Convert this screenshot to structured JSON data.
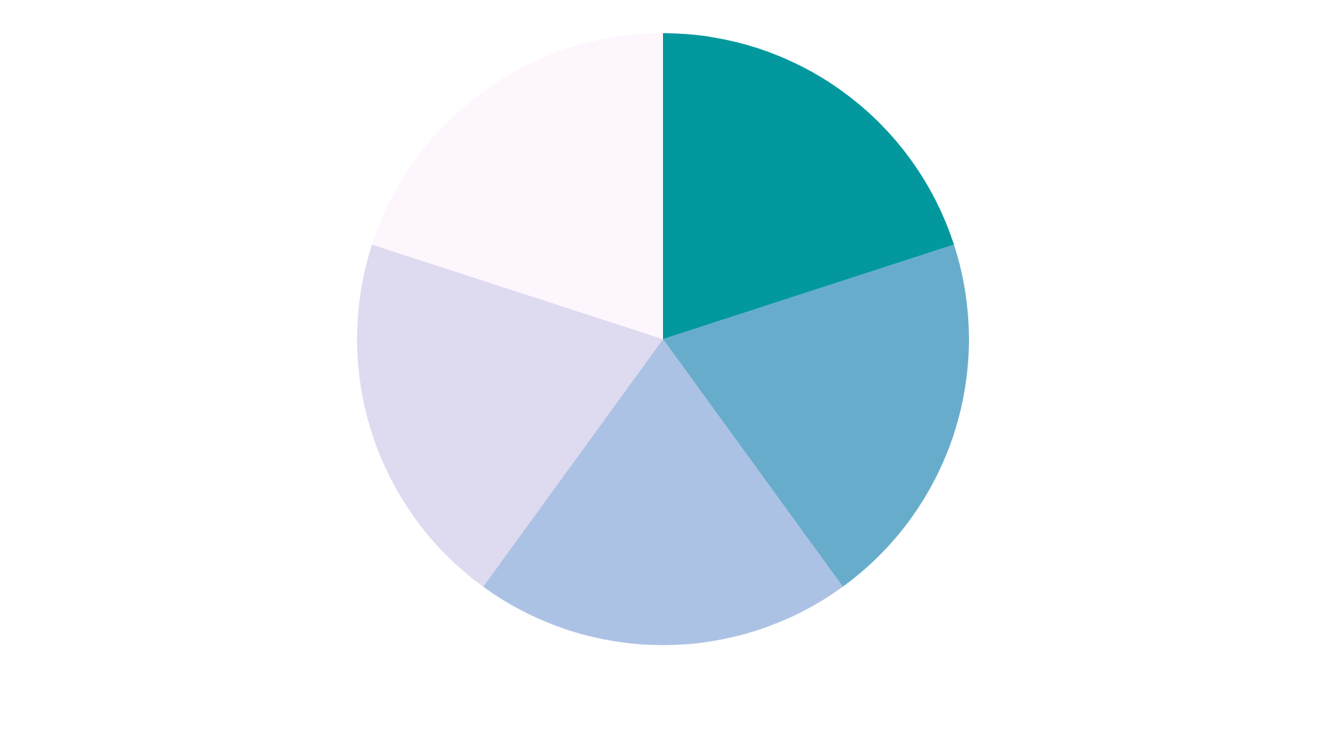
{
  "chart_data": {
    "type": "pie",
    "start_angle": "top, clockwise",
    "values": [
      20,
      20,
      20,
      20,
      20
    ],
    "colors": [
      "#03989e",
      "#67adcb",
      "#acc2e4",
      "#dedaf0",
      "#fdf6fd"
    ]
  }
}
